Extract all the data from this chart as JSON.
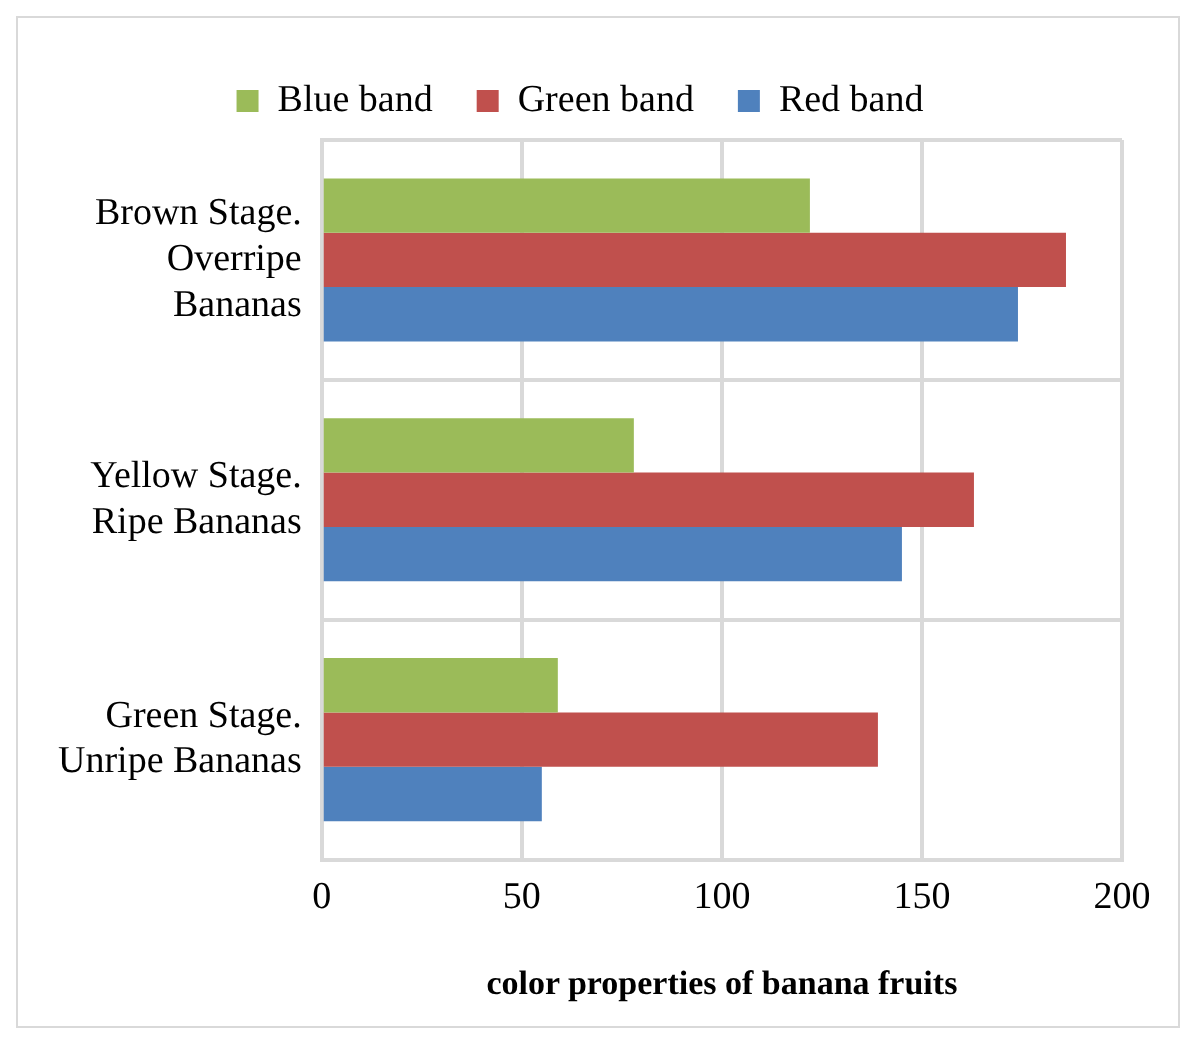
{
  "chart_data": {
    "type": "bar",
    "orientation": "horizontal",
    "xlabel": "color properties of banana fruits",
    "categories": [
      "Brown Stage. Overripe Bananas",
      "Yellow Stage. Ripe Bananas",
      "Green Stage. Unripe Bananas"
    ],
    "series": [
      {
        "name": "Blue band",
        "color": "#9bbb59",
        "values": [
          122,
          78,
          59
        ]
      },
      {
        "name": "Green band",
        "color": "#c0504d",
        "values": [
          186,
          163,
          139
        ]
      },
      {
        "name": "Red band",
        "color": "#4f81bd",
        "values": [
          174,
          145,
          55
        ]
      }
    ],
    "xlim": [
      0,
      200
    ],
    "xticks": [
      0,
      50,
      100,
      150,
      200
    ],
    "grid": true,
    "legend": "top"
  }
}
